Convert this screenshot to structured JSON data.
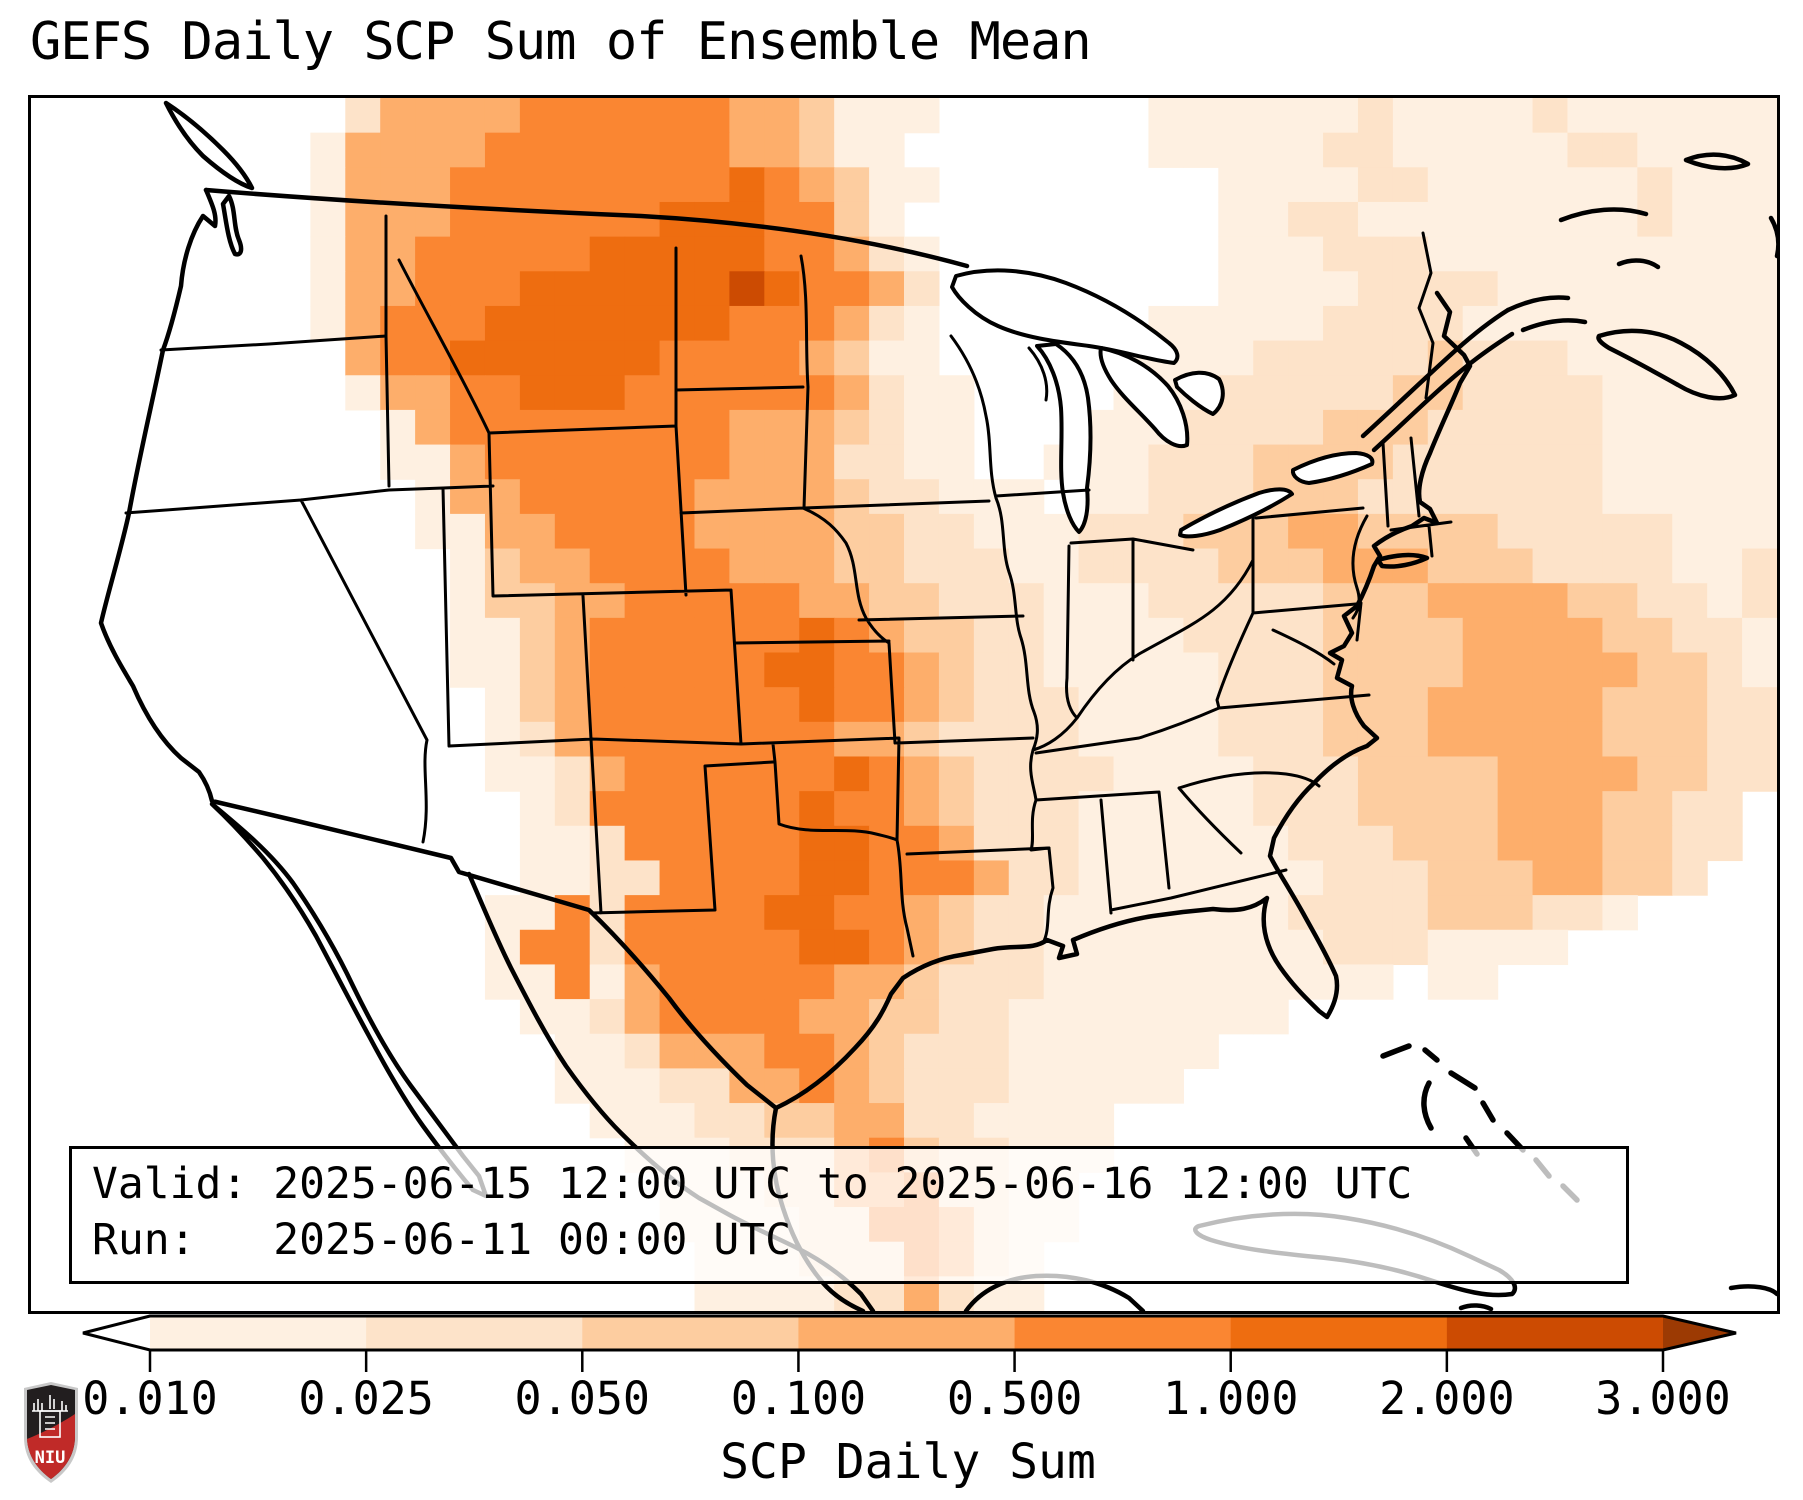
{
  "title": "GEFS Daily SCP Sum of Ensemble Mean",
  "info_box": {
    "valid_line": "Valid: 2025-06-15 12:00 UTC to 2025-06-16 12:00 UTC",
    "run_line": "Run:   2025-06-11 00:00 UTC"
  },
  "colorbar": {
    "label": "SCP Daily Sum",
    "tick_labels": [
      "0.010",
      "0.025",
      "0.050",
      "0.100",
      "0.500",
      "1.000",
      "2.000",
      "3.000"
    ],
    "under_color": "#ffffff",
    "over_color": "#9c3a03",
    "segment_colors": [
      "#fef0e1",
      "#fde3c9",
      "#fdcda0",
      "#fdae6b",
      "#fa8632",
      "#ee6d10",
      "#cc4b02"
    ]
  },
  "logo": {
    "text": "NIU",
    "shield_dark": "#221e1f",
    "shield_red": "#c02a28",
    "shield_border": "#c8c8c8"
  },
  "chart_data": {
    "type": "heatmap",
    "title": "GEFS Daily SCP Sum of Ensemble Mean",
    "colorbar_label": "SCP Daily Sum",
    "valid_period": "2025-06-15 12:00 UTC to 2025-06-16 12:00 UTC",
    "model_run": "2025-06-11 00:00 UTC",
    "bin_edges": [
      0.01,
      0.025,
      0.05,
      0.1,
      0.5,
      1.0,
      2.0,
      3.0
    ],
    "bin_colors": [
      "#fef0e1",
      "#fde3c9",
      "#fdcda0",
      "#fdae6b",
      "#fa8632",
      "#ee6d10",
      "#cc4b02"
    ],
    "under_color": "#ffffff",
    "over_color": "#9c3a03",
    "legend": "grid digits 0-7: 0 = <0.010 (white), 1 = 0.010-0.025, 2 = 0.025-0.050, 3 = 0.050-0.100, 4 = 0.100-0.500, 5 = 0.500-1.000, 6 = 1.000-2.000, 7 = 2.000-3.000",
    "grid_note": "50x35 coarse SCP daily-sum field over the CONUS map area; maximum over eastern Montana / western Dakotas, broad plume across the central and southern Plains into Texas, secondary band offshore the Atlantic coast, white over the far West and Great Lakes.",
    "grid_levels": [
      "00000000024444555555443111000000111111211112111111",
      "00000000144445555555443110000000111112211111221111",
      "00000000144455555555654311000000001111221111112111",
      "00000000144455555566655310000000001122111111112111",
      "00000000144555556666655421000000001112221111111111",
      "00000000144555666666765542000000001111222211111111",
      "00000000145556666666555421000000111112222111111111",
      "00000000045566666655554311000001111222223222111111",
      "00000000014455666555555421100001112222233222211111",
      "00000000001455555555444321100011122223332222211111",
      "00000000001145555555444221100111222333322222211111",
      "00000000000144555554444322111011222333222222211111",
      "00000000000114455554444332211122233344333322222111",
      "00000000000013445555444332221122223334443332222112",
      "00000000000013344555554433222111222223334444332212",
      "00000000000011345555556543322111122223333444433221",
      "00000000000011345555566554322111112223333444443321",
      "00000000000001345555556554322211112223334444433322",
      "00000000000001245555555443222211112223334444433322",
      "00000000000001124555555654322221111222333344443322",
      "00000000000000125555556554322211111222333344433220",
      "00000000000000112555556655422211111122233344433220",
      "00000000000000112255556655542211111112223334433200",
      "00000000000001152555566554322111111122223332210000",
      "00000000000001552555556654322111111112221111000000",
      "00000000000001151455555443222111111111101100000000",
      "00000000000000112455554433221111111100000000000000",
      "00000000000000011244455432221111110000000000000000",
      "00000000000000011122445432221111100000000000000000",
      "00000000000000001112233442211110000000000000000000",
      "00000000000000000111222453221110000000000000000000",
      "00000000000000000011122445221100000000000000000000",
      "00000000000000000011112255421100000000000000000000",
      "00000000000000000001112225421000000000000000000000",
      "00000000000000000001111224211000000000000000000000"
    ]
  }
}
